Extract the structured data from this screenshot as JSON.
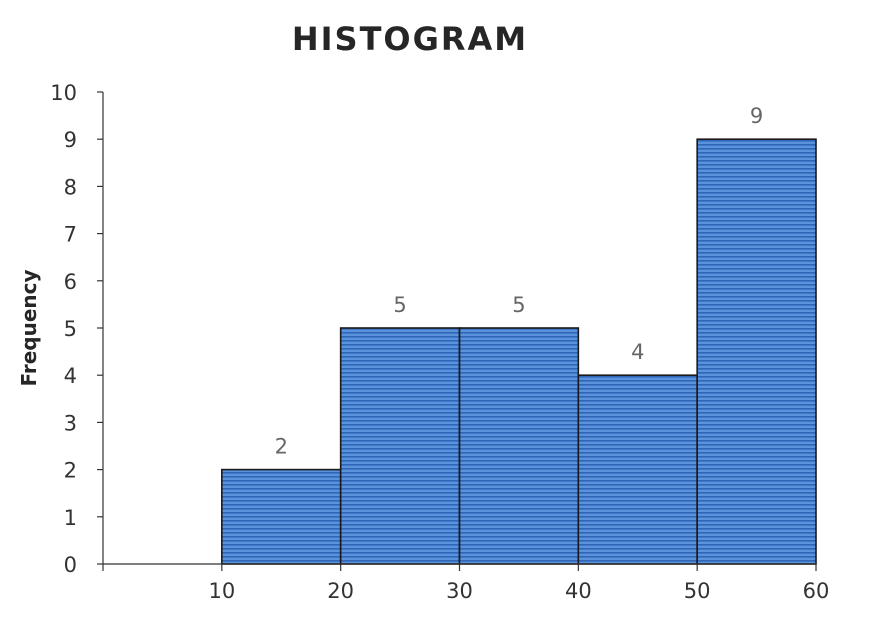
{
  "chart_data": {
    "type": "bar",
    "title": "HISTOGRAM",
    "xlabel": "",
    "ylabel": "Frequency",
    "bins": [
      [
        10,
        20
      ],
      [
        20,
        30
      ],
      [
        30,
        40
      ],
      [
        40,
        50
      ],
      [
        50,
        60
      ]
    ],
    "values": [
      2,
      5,
      5,
      4,
      9
    ],
    "data_labels": [
      "2",
      "5",
      "5",
      "4",
      "9"
    ],
    "x_ticks": [
      "10",
      "20",
      "30",
      "40",
      "50",
      "60"
    ],
    "x_tick_values": [
      10,
      20,
      30,
      40,
      50,
      60
    ],
    "y_ticks": [
      "0",
      "1",
      "2",
      "3",
      "4",
      "5",
      "6",
      "7",
      "8",
      "9",
      "10"
    ],
    "y_tick_values": [
      0,
      1,
      2,
      3,
      4,
      5,
      6,
      7,
      8,
      9,
      10
    ],
    "xlim": [
      0,
      60
    ],
    "ylim": [
      0,
      10
    ],
    "grid": false,
    "legend": "none",
    "colors": {
      "bar_fill": "#4a86d4",
      "bar_stripe": "#2f66b8",
      "bar_edge": "#1a1a1a"
    }
  }
}
